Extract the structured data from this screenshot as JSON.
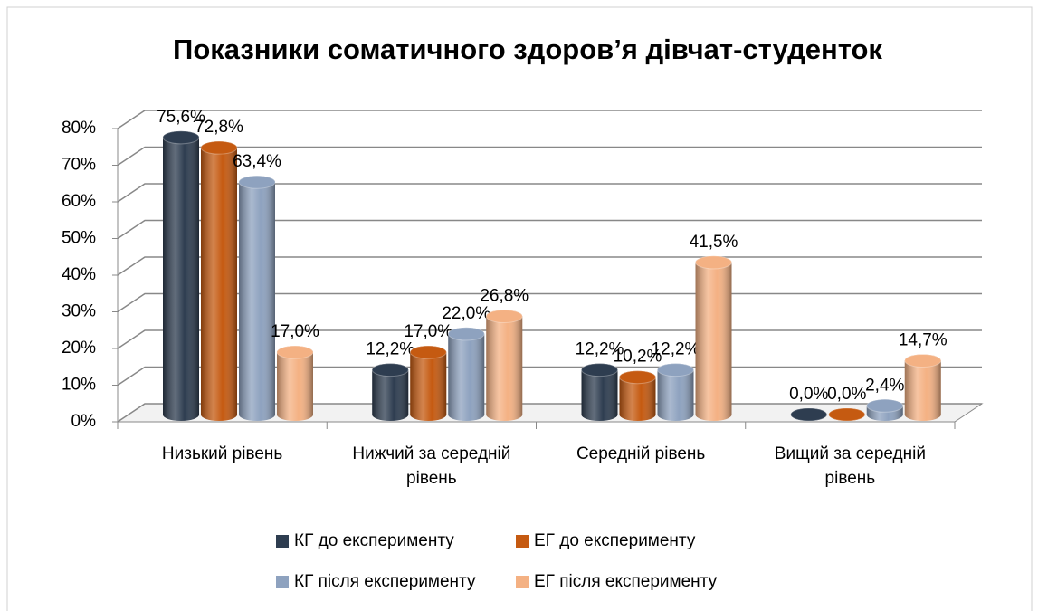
{
  "chart_data": {
    "type": "bar3d",
    "title": "Показники соматичного здоров’я дівчат-студенток",
    "categories": [
      "Низький рівень",
      "Нижчий за середній рівень",
      "Середній рівень",
      "Вищий за середній рівень"
    ],
    "series": [
      {
        "name": "КГ до експерименту",
        "color": "#2e3d50",
        "values": [
          75.6,
          12.2,
          12.2,
          0.0
        ],
        "value_labels": [
          "75,6%",
          "12,2%",
          "12,2%",
          "0,0%"
        ]
      },
      {
        "name": "ЕГ до експерименту",
        "color": "#c55a11",
        "values": [
          72.8,
          17.0,
          10.2,
          0.0
        ],
        "value_labels": [
          "72,8%",
          "17,0%",
          "10,2%",
          "0,0%"
        ]
      },
      {
        "name": "КГ після експерименту",
        "color": "#8ea2bf",
        "values": [
          63.4,
          22.0,
          12.2,
          2.4
        ],
        "value_labels": [
          "63,4%",
          "22,0%",
          "12,2%",
          "2,4%"
        ]
      },
      {
        "name": "ЕГ після експерименту",
        "color": "#f4b183",
        "values": [
          17.0,
          26.8,
          41.5,
          14.7
        ],
        "value_labels": [
          "17,0%",
          "26,8%",
          "41,5%",
          "14,7%"
        ]
      }
    ],
    "ylim": [
      0,
      80
    ],
    "yticks": [
      {
        "value": 0,
        "label": "0%"
      },
      {
        "value": 10,
        "label": "10%"
      },
      {
        "value": 20,
        "label": "20%"
      },
      {
        "value": 30,
        "label": "30%"
      },
      {
        "value": 40,
        "label": "40%"
      },
      {
        "value": 50,
        "label": "50%"
      },
      {
        "value": 60,
        "label": "60%"
      },
      {
        "value": 70,
        "label": "70%"
      },
      {
        "value": 80,
        "label": "80%"
      }
    ],
    "grid": true,
    "legend": "bottom"
  }
}
